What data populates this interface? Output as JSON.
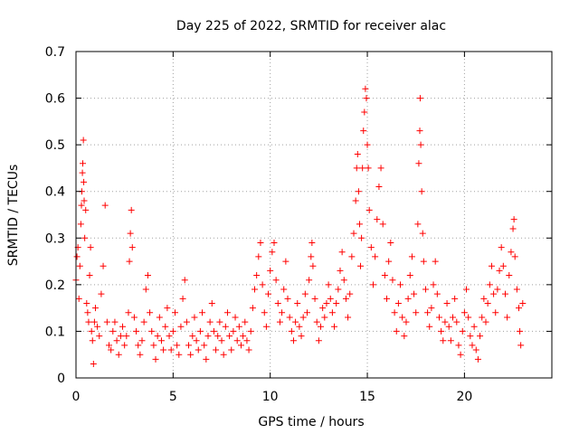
{
  "chart_data": {
    "type": "scatter",
    "title": "Day 225 of 2022, SRMTID for receiver alac",
    "xlabel": "GPS time / hours",
    "ylabel": "SRMTID / TECUs",
    "xlim": [
      0,
      24.5
    ],
    "ylim": [
      0,
      0.7
    ],
    "xticks": [
      0,
      5,
      10,
      15,
      20
    ],
    "yticks": [
      0,
      0.1,
      0.2,
      0.3,
      0.4,
      0.5,
      0.6,
      0.7
    ],
    "grid": true,
    "marker": "plus",
    "color": "#ff0000",
    "series": [
      {
        "name": "SRMTID",
        "points": [
          [
            0.0,
            0.21
          ],
          [
            0.05,
            0.26
          ],
          [
            0.1,
            0.28
          ],
          [
            0.15,
            0.17
          ],
          [
            0.2,
            0.24
          ],
          [
            0.25,
            0.33
          ],
          [
            0.28,
            0.37
          ],
          [
            0.3,
            0.4
          ],
          [
            0.33,
            0.44
          ],
          [
            0.35,
            0.46
          ],
          [
            0.38,
            0.51
          ],
          [
            0.4,
            0.42
          ],
          [
            0.42,
            0.38
          ],
          [
            0.45,
            0.3
          ],
          [
            0.5,
            0.36
          ],
          [
            0.55,
            0.16
          ],
          [
            0.6,
            0.14
          ],
          [
            0.65,
            0.12
          ],
          [
            0.7,
            0.22
          ],
          [
            0.75,
            0.28
          ],
          [
            0.8,
            0.1
          ],
          [
            0.85,
            0.08
          ],
          [
            0.9,
            0.03
          ],
          [
            0.95,
            0.12
          ],
          [
            1.0,
            0.15
          ],
          [
            1.1,
            0.11
          ],
          [
            1.2,
            0.09
          ],
          [
            1.3,
            0.18
          ],
          [
            1.4,
            0.24
          ],
          [
            1.5,
            0.37
          ],
          [
            1.6,
            0.12
          ],
          [
            1.7,
            0.07
          ],
          [
            1.8,
            0.06
          ],
          [
            1.9,
            0.1
          ],
          [
            2.0,
            0.12
          ],
          [
            2.1,
            0.08
          ],
          [
            2.2,
            0.05
          ],
          [
            2.3,
            0.09
          ],
          [
            2.4,
            0.11
          ],
          [
            2.5,
            0.07
          ],
          [
            2.6,
            0.09
          ],
          [
            2.7,
            0.14
          ],
          [
            2.75,
            0.25
          ],
          [
            2.8,
            0.31
          ],
          [
            2.85,
            0.36
          ],
          [
            2.9,
            0.28
          ],
          [
            3.0,
            0.13
          ],
          [
            3.1,
            0.1
          ],
          [
            3.2,
            0.07
          ],
          [
            3.3,
            0.05
          ],
          [
            3.4,
            0.08
          ],
          [
            3.5,
            0.12
          ],
          [
            3.6,
            0.19
          ],
          [
            3.7,
            0.22
          ],
          [
            3.8,
            0.14
          ],
          [
            3.9,
            0.1
          ],
          [
            4.0,
            0.07
          ],
          [
            4.1,
            0.04
          ],
          [
            4.2,
            0.09
          ],
          [
            4.3,
            0.13
          ],
          [
            4.4,
            0.08
          ],
          [
            4.5,
            0.06
          ],
          [
            4.6,
            0.11
          ],
          [
            4.7,
            0.15
          ],
          [
            4.8,
            0.09
          ],
          [
            4.9,
            0.06
          ],
          [
            5.0,
            0.1
          ],
          [
            5.1,
            0.14
          ],
          [
            5.2,
            0.07
          ],
          [
            5.3,
            0.05
          ],
          [
            5.4,
            0.11
          ],
          [
            5.5,
            0.17
          ],
          [
            5.6,
            0.21
          ],
          [
            5.7,
            0.12
          ],
          [
            5.8,
            0.07
          ],
          [
            5.9,
            0.05
          ],
          [
            6.0,
            0.09
          ],
          [
            6.1,
            0.13
          ],
          [
            6.2,
            0.08
          ],
          [
            6.3,
            0.06
          ],
          [
            6.4,
            0.1
          ],
          [
            6.5,
            0.14
          ],
          [
            6.6,
            0.07
          ],
          [
            6.7,
            0.04
          ],
          [
            6.8,
            0.09
          ],
          [
            6.9,
            0.12
          ],
          [
            7.0,
            0.16
          ],
          [
            7.1,
            0.1
          ],
          [
            7.2,
            0.06
          ],
          [
            7.3,
            0.09
          ],
          [
            7.4,
            0.12
          ],
          [
            7.5,
            0.08
          ],
          [
            7.6,
            0.05
          ],
          [
            7.7,
            0.11
          ],
          [
            7.8,
            0.14
          ],
          [
            7.9,
            0.09
          ],
          [
            8.0,
            0.06
          ],
          [
            8.1,
            0.1
          ],
          [
            8.2,
            0.13
          ],
          [
            8.3,
            0.08
          ],
          [
            8.4,
            0.11
          ],
          [
            8.5,
            0.07
          ],
          [
            8.6,
            0.09
          ],
          [
            8.7,
            0.12
          ],
          [
            8.8,
            0.08
          ],
          [
            8.9,
            0.06
          ],
          [
            9.0,
            0.1
          ],
          [
            9.1,
            0.15
          ],
          [
            9.2,
            0.19
          ],
          [
            9.3,
            0.22
          ],
          [
            9.4,
            0.26
          ],
          [
            9.5,
            0.29
          ],
          [
            9.6,
            0.2
          ],
          [
            9.7,
            0.14
          ],
          [
            9.8,
            0.11
          ],
          [
            9.9,
            0.18
          ],
          [
            10.0,
            0.23
          ],
          [
            10.1,
            0.27
          ],
          [
            10.2,
            0.29
          ],
          [
            10.3,
            0.21
          ],
          [
            10.4,
            0.16
          ],
          [
            10.5,
            0.12
          ],
          [
            10.6,
            0.14
          ],
          [
            10.7,
            0.19
          ],
          [
            10.8,
            0.25
          ],
          [
            10.9,
            0.17
          ],
          [
            11.0,
            0.13
          ],
          [
            11.1,
            0.1
          ],
          [
            11.2,
            0.08
          ],
          [
            11.3,
            0.12
          ],
          [
            11.4,
            0.16
          ],
          [
            11.5,
            0.11
          ],
          [
            11.6,
            0.09
          ],
          [
            11.7,
            0.13
          ],
          [
            11.8,
            0.18
          ],
          [
            11.9,
            0.14
          ],
          [
            12.0,
            0.21
          ],
          [
            12.1,
            0.26
          ],
          [
            12.15,
            0.29
          ],
          [
            12.2,
            0.24
          ],
          [
            12.3,
            0.17
          ],
          [
            12.4,
            0.12
          ],
          [
            12.5,
            0.08
          ],
          [
            12.6,
            0.11
          ],
          [
            12.7,
            0.15
          ],
          [
            12.8,
            0.13
          ],
          [
            12.9,
            0.16
          ],
          [
            13.0,
            0.2
          ],
          [
            13.1,
            0.17
          ],
          [
            13.2,
            0.14
          ],
          [
            13.3,
            0.11
          ],
          [
            13.4,
            0.16
          ],
          [
            13.5,
            0.19
          ],
          [
            13.6,
            0.23
          ],
          [
            13.7,
            0.27
          ],
          [
            13.8,
            0.21
          ],
          [
            13.9,
            0.17
          ],
          [
            14.0,
            0.13
          ],
          [
            14.1,
            0.18
          ],
          [
            14.2,
            0.26
          ],
          [
            14.3,
            0.31
          ],
          [
            14.4,
            0.38
          ],
          [
            14.45,
            0.45
          ],
          [
            14.5,
            0.48
          ],
          [
            14.55,
            0.4
          ],
          [
            14.6,
            0.33
          ],
          [
            14.65,
            0.24
          ],
          [
            14.7,
            0.3
          ],
          [
            14.75,
            0.45
          ],
          [
            14.8,
            0.53
          ],
          [
            14.85,
            0.57
          ],
          [
            14.9,
            0.62
          ],
          [
            14.95,
            0.6
          ],
          [
            15.0,
            0.5
          ],
          [
            15.05,
            0.45
          ],
          [
            15.1,
            0.36
          ],
          [
            15.2,
            0.28
          ],
          [
            15.3,
            0.2
          ],
          [
            15.4,
            0.26
          ],
          [
            15.5,
            0.34
          ],
          [
            15.6,
            0.41
          ],
          [
            15.7,
            0.45
          ],
          [
            15.8,
            0.33
          ],
          [
            15.9,
            0.22
          ],
          [
            16.0,
            0.17
          ],
          [
            16.1,
            0.25
          ],
          [
            16.2,
            0.29
          ],
          [
            16.3,
            0.21
          ],
          [
            16.4,
            0.14
          ],
          [
            16.5,
            0.1
          ],
          [
            16.6,
            0.16
          ],
          [
            16.7,
            0.2
          ],
          [
            16.8,
            0.13
          ],
          [
            16.9,
            0.09
          ],
          [
            17.0,
            0.12
          ],
          [
            17.1,
            0.17
          ],
          [
            17.2,
            0.22
          ],
          [
            17.3,
            0.26
          ],
          [
            17.4,
            0.18
          ],
          [
            17.5,
            0.14
          ],
          [
            17.6,
            0.33
          ],
          [
            17.65,
            0.46
          ],
          [
            17.7,
            0.53
          ],
          [
            17.72,
            0.6
          ],
          [
            17.75,
            0.5
          ],
          [
            17.8,
            0.4
          ],
          [
            17.85,
            0.31
          ],
          [
            17.9,
            0.25
          ],
          [
            18.0,
            0.19
          ],
          [
            18.1,
            0.14
          ],
          [
            18.2,
            0.11
          ],
          [
            18.3,
            0.15
          ],
          [
            18.4,
            0.2
          ],
          [
            18.5,
            0.25
          ],
          [
            18.6,
            0.18
          ],
          [
            18.7,
            0.13
          ],
          [
            18.8,
            0.1
          ],
          [
            18.9,
            0.08
          ],
          [
            19.0,
            0.12
          ],
          [
            19.1,
            0.16
          ],
          [
            19.2,
            0.11
          ],
          [
            19.3,
            0.08
          ],
          [
            19.4,
            0.13
          ],
          [
            19.5,
            0.17
          ],
          [
            19.6,
            0.12
          ],
          [
            19.7,
            0.07
          ],
          [
            19.8,
            0.05
          ],
          [
            19.9,
            0.1
          ],
          [
            20.0,
            0.14
          ],
          [
            20.1,
            0.19
          ],
          [
            20.2,
            0.13
          ],
          [
            20.3,
            0.09
          ],
          [
            20.4,
            0.07
          ],
          [
            20.5,
            0.11
          ],
          [
            20.6,
            0.06
          ],
          [
            20.7,
            0.04
          ],
          [
            20.8,
            0.09
          ],
          [
            20.9,
            0.13
          ],
          [
            21.0,
            0.17
          ],
          [
            21.1,
            0.12
          ],
          [
            21.2,
            0.16
          ],
          [
            21.3,
            0.2
          ],
          [
            21.4,
            0.24
          ],
          [
            21.5,
            0.18
          ],
          [
            21.6,
            0.14
          ],
          [
            21.7,
            0.19
          ],
          [
            21.8,
            0.23
          ],
          [
            21.9,
            0.28
          ],
          [
            22.0,
            0.24
          ],
          [
            22.1,
            0.18
          ],
          [
            22.2,
            0.13
          ],
          [
            22.3,
            0.22
          ],
          [
            22.4,
            0.27
          ],
          [
            22.5,
            0.32
          ],
          [
            22.55,
            0.34
          ],
          [
            22.6,
            0.26
          ],
          [
            22.7,
            0.19
          ],
          [
            22.8,
            0.15
          ],
          [
            22.85,
            0.1
          ],
          [
            22.9,
            0.07
          ],
          [
            23.0,
            0.16
          ]
        ]
      }
    ]
  }
}
